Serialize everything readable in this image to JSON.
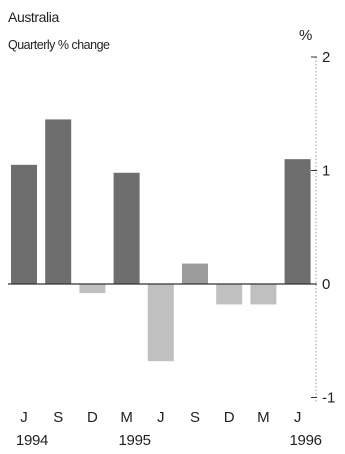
{
  "chart_data": {
    "type": "bar",
    "title": "Australia",
    "subtitle": "Quarterly % change",
    "unit_label": "%",
    "categories": [
      "J",
      "S",
      "D",
      "M",
      "J",
      "S",
      "D",
      "M",
      "J"
    ],
    "year_labels": [
      {
        "label": "1994",
        "category_index": 0
      },
      {
        "label": "1995",
        "category_index": 3
      },
      {
        "label": "1996",
        "category_index": 8
      }
    ],
    "values": [
      1.05,
      1.45,
      -0.08,
      0.98,
      -0.68,
      0.18,
      -0.18,
      -0.18,
      1.1
    ],
    "y_ticks": [
      "2",
      "1",
      "0",
      "-1"
    ],
    "ylim": [
      -1,
      2
    ],
    "axis_position": "right",
    "grid": false,
    "colors": {
      "bar_dark": "#555555",
      "bar_mid": "#8a8a8a",
      "bar_light": "#b5b5b5",
      "axis": "#333333"
    }
  }
}
